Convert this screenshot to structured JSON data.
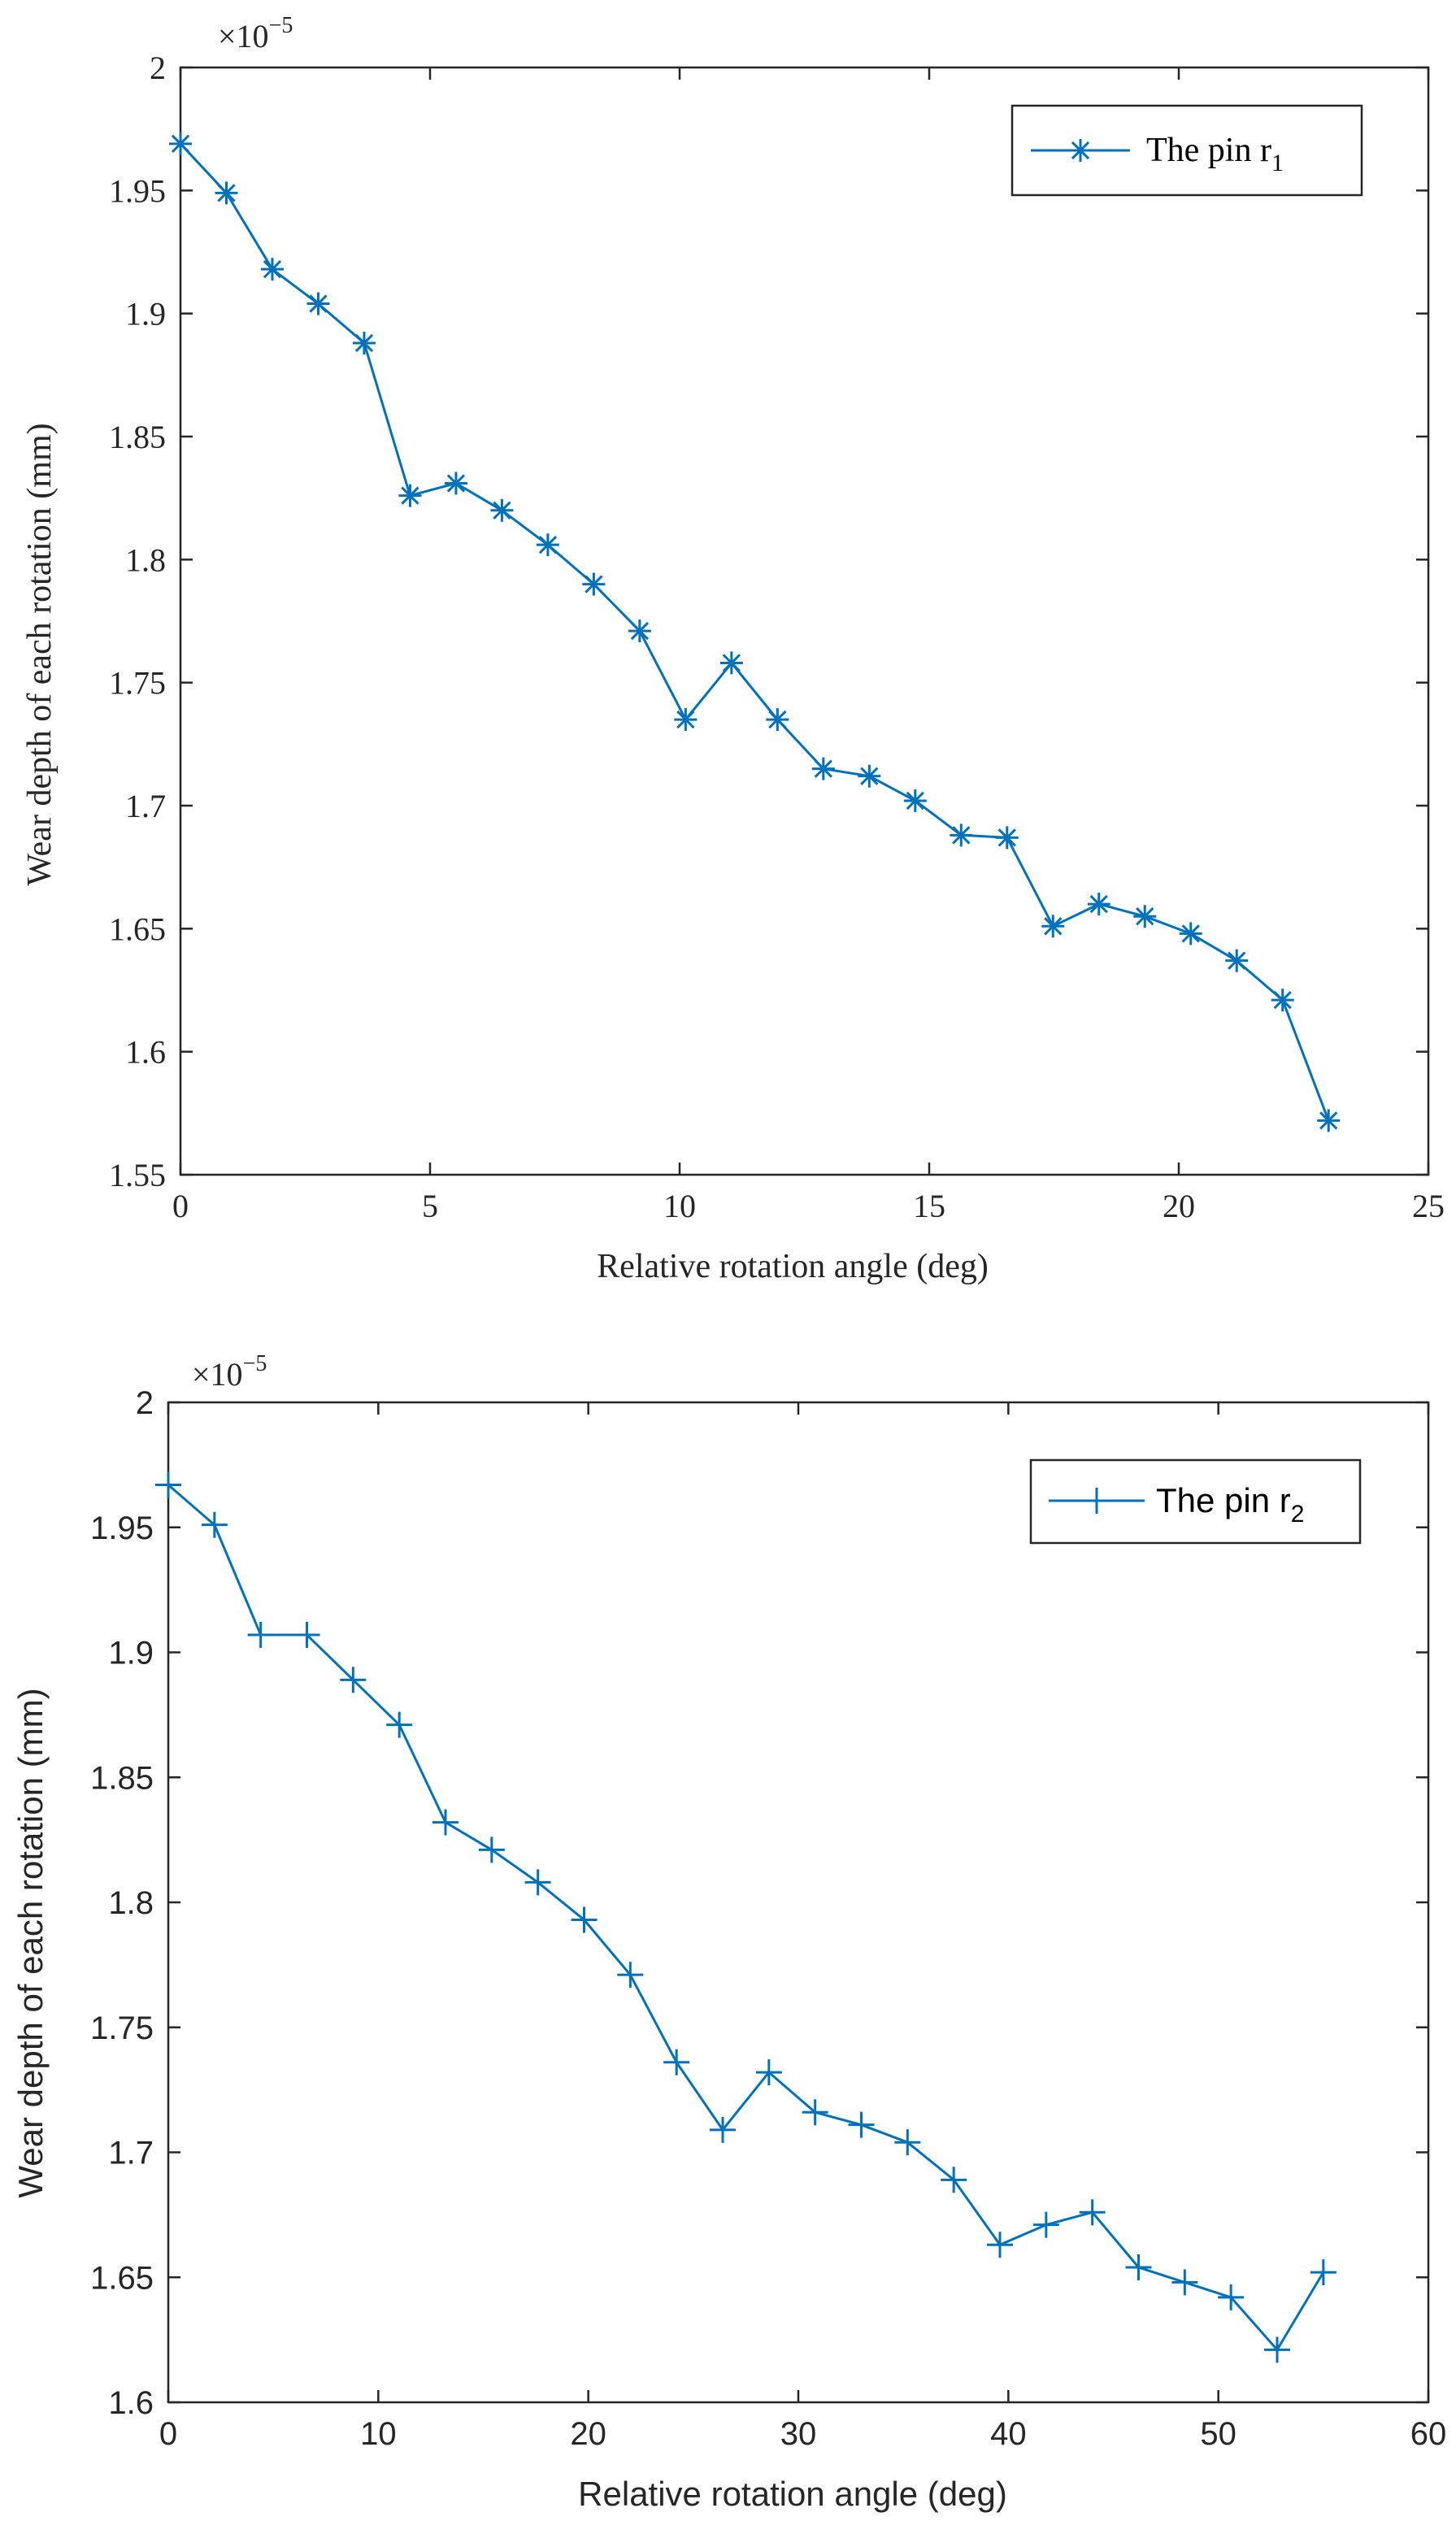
{
  "colors": {
    "series": "#0072BD",
    "axis": "#262626",
    "background": "#ffffff"
  },
  "chart_data": [
    {
      "type": "line",
      "marker": "asterisk",
      "xlabel": "Relative rotation angle (deg)",
      "ylabel": "Wear depth of each rotation (mm)",
      "exponent_label": "×10",
      "exponent_power": "−5",
      "xlim": [
        0,
        25
      ],
      "ylim": [
        1.55,
        2.0
      ],
      "xticks": [
        0,
        5,
        10,
        15,
        20,
        25
      ],
      "xtick_labels": [
        "0",
        "5",
        "10",
        "15",
        "20",
        "25"
      ],
      "yticks": [
        1.55,
        1.6,
        1.65,
        1.7,
        1.75,
        1.8,
        1.85,
        1.9,
        1.95,
        2.0
      ],
      "ytick_labels": [
        "1.55",
        "1.6",
        "1.65",
        "1.7",
        "1.75",
        "1.8",
        "1.85",
        "1.9",
        "1.95",
        "2"
      ],
      "legend": {
        "text": "The pin r",
        "subscript": "1",
        "placement": "top-right"
      },
      "series": [
        {
          "name": "The pin r1",
          "x": [
            0,
            0.92,
            1.84,
            2.76,
            3.68,
            4.6,
            5.52,
            6.44,
            7.36,
            8.28,
            9.2,
            10.12,
            11.04,
            11.96,
            12.88,
            13.8,
            14.72,
            15.64,
            16.56,
            17.48,
            18.4,
            19.32,
            20.24,
            21.16,
            22.08,
            23.0
          ],
          "y": [
            1.969,
            1.949,
            1.918,
            1.904,
            1.888,
            1.826,
            1.831,
            1.82,
            1.806,
            1.79,
            1.771,
            1.735,
            1.758,
            1.735,
            1.715,
            1.712,
            1.702,
            1.688,
            1.687,
            1.651,
            1.66,
            1.655,
            1.648,
            1.637,
            1.621,
            1.572
          ]
        }
      ]
    },
    {
      "type": "line",
      "marker": "plus",
      "xlabel": "Relative rotation angle (deg)",
      "ylabel": "Wear depth of each rotation (mm)",
      "exponent_label": "×10",
      "exponent_power": "−5",
      "xlim": [
        0,
        60
      ],
      "ylim": [
        1.6,
        2.0
      ],
      "xticks": [
        0,
        10,
        20,
        30,
        40,
        50,
        60
      ],
      "xtick_labels": [
        "0",
        "10",
        "20",
        "30",
        "40",
        "50",
        "60"
      ],
      "yticks": [
        1.6,
        1.65,
        1.7,
        1.75,
        1.8,
        1.85,
        1.9,
        1.95,
        2.0
      ],
      "ytick_labels": [
        "1.6",
        "1.65",
        "1.7",
        "1.75",
        "1.8",
        "1.85",
        "1.9",
        "1.95",
        "2"
      ],
      "legend": {
        "text": "The pin r",
        "subscript": "2",
        "placement": "top-right"
      },
      "series": [
        {
          "name": "The pin r2",
          "x": [
            0,
            2.2,
            4.4,
            6.6,
            8.8,
            11.0,
            13.2,
            15.4,
            17.6,
            19.8,
            22.0,
            24.2,
            26.4,
            28.6,
            30.8,
            33.0,
            35.2,
            37.4,
            39.6,
            41.8,
            44.0,
            46.2,
            48.4,
            50.6,
            52.8,
            55.0
          ],
          "y": [
            1.967,
            1.951,
            1.907,
            1.907,
            1.889,
            1.871,
            1.832,
            1.821,
            1.808,
            1.793,
            1.771,
            1.736,
            1.709,
            1.732,
            1.716,
            1.711,
            1.704,
            1.689,
            1.663,
            1.671,
            1.676,
            1.654,
            1.648,
            1.642,
            1.621,
            1.652
          ]
        }
      ]
    }
  ]
}
